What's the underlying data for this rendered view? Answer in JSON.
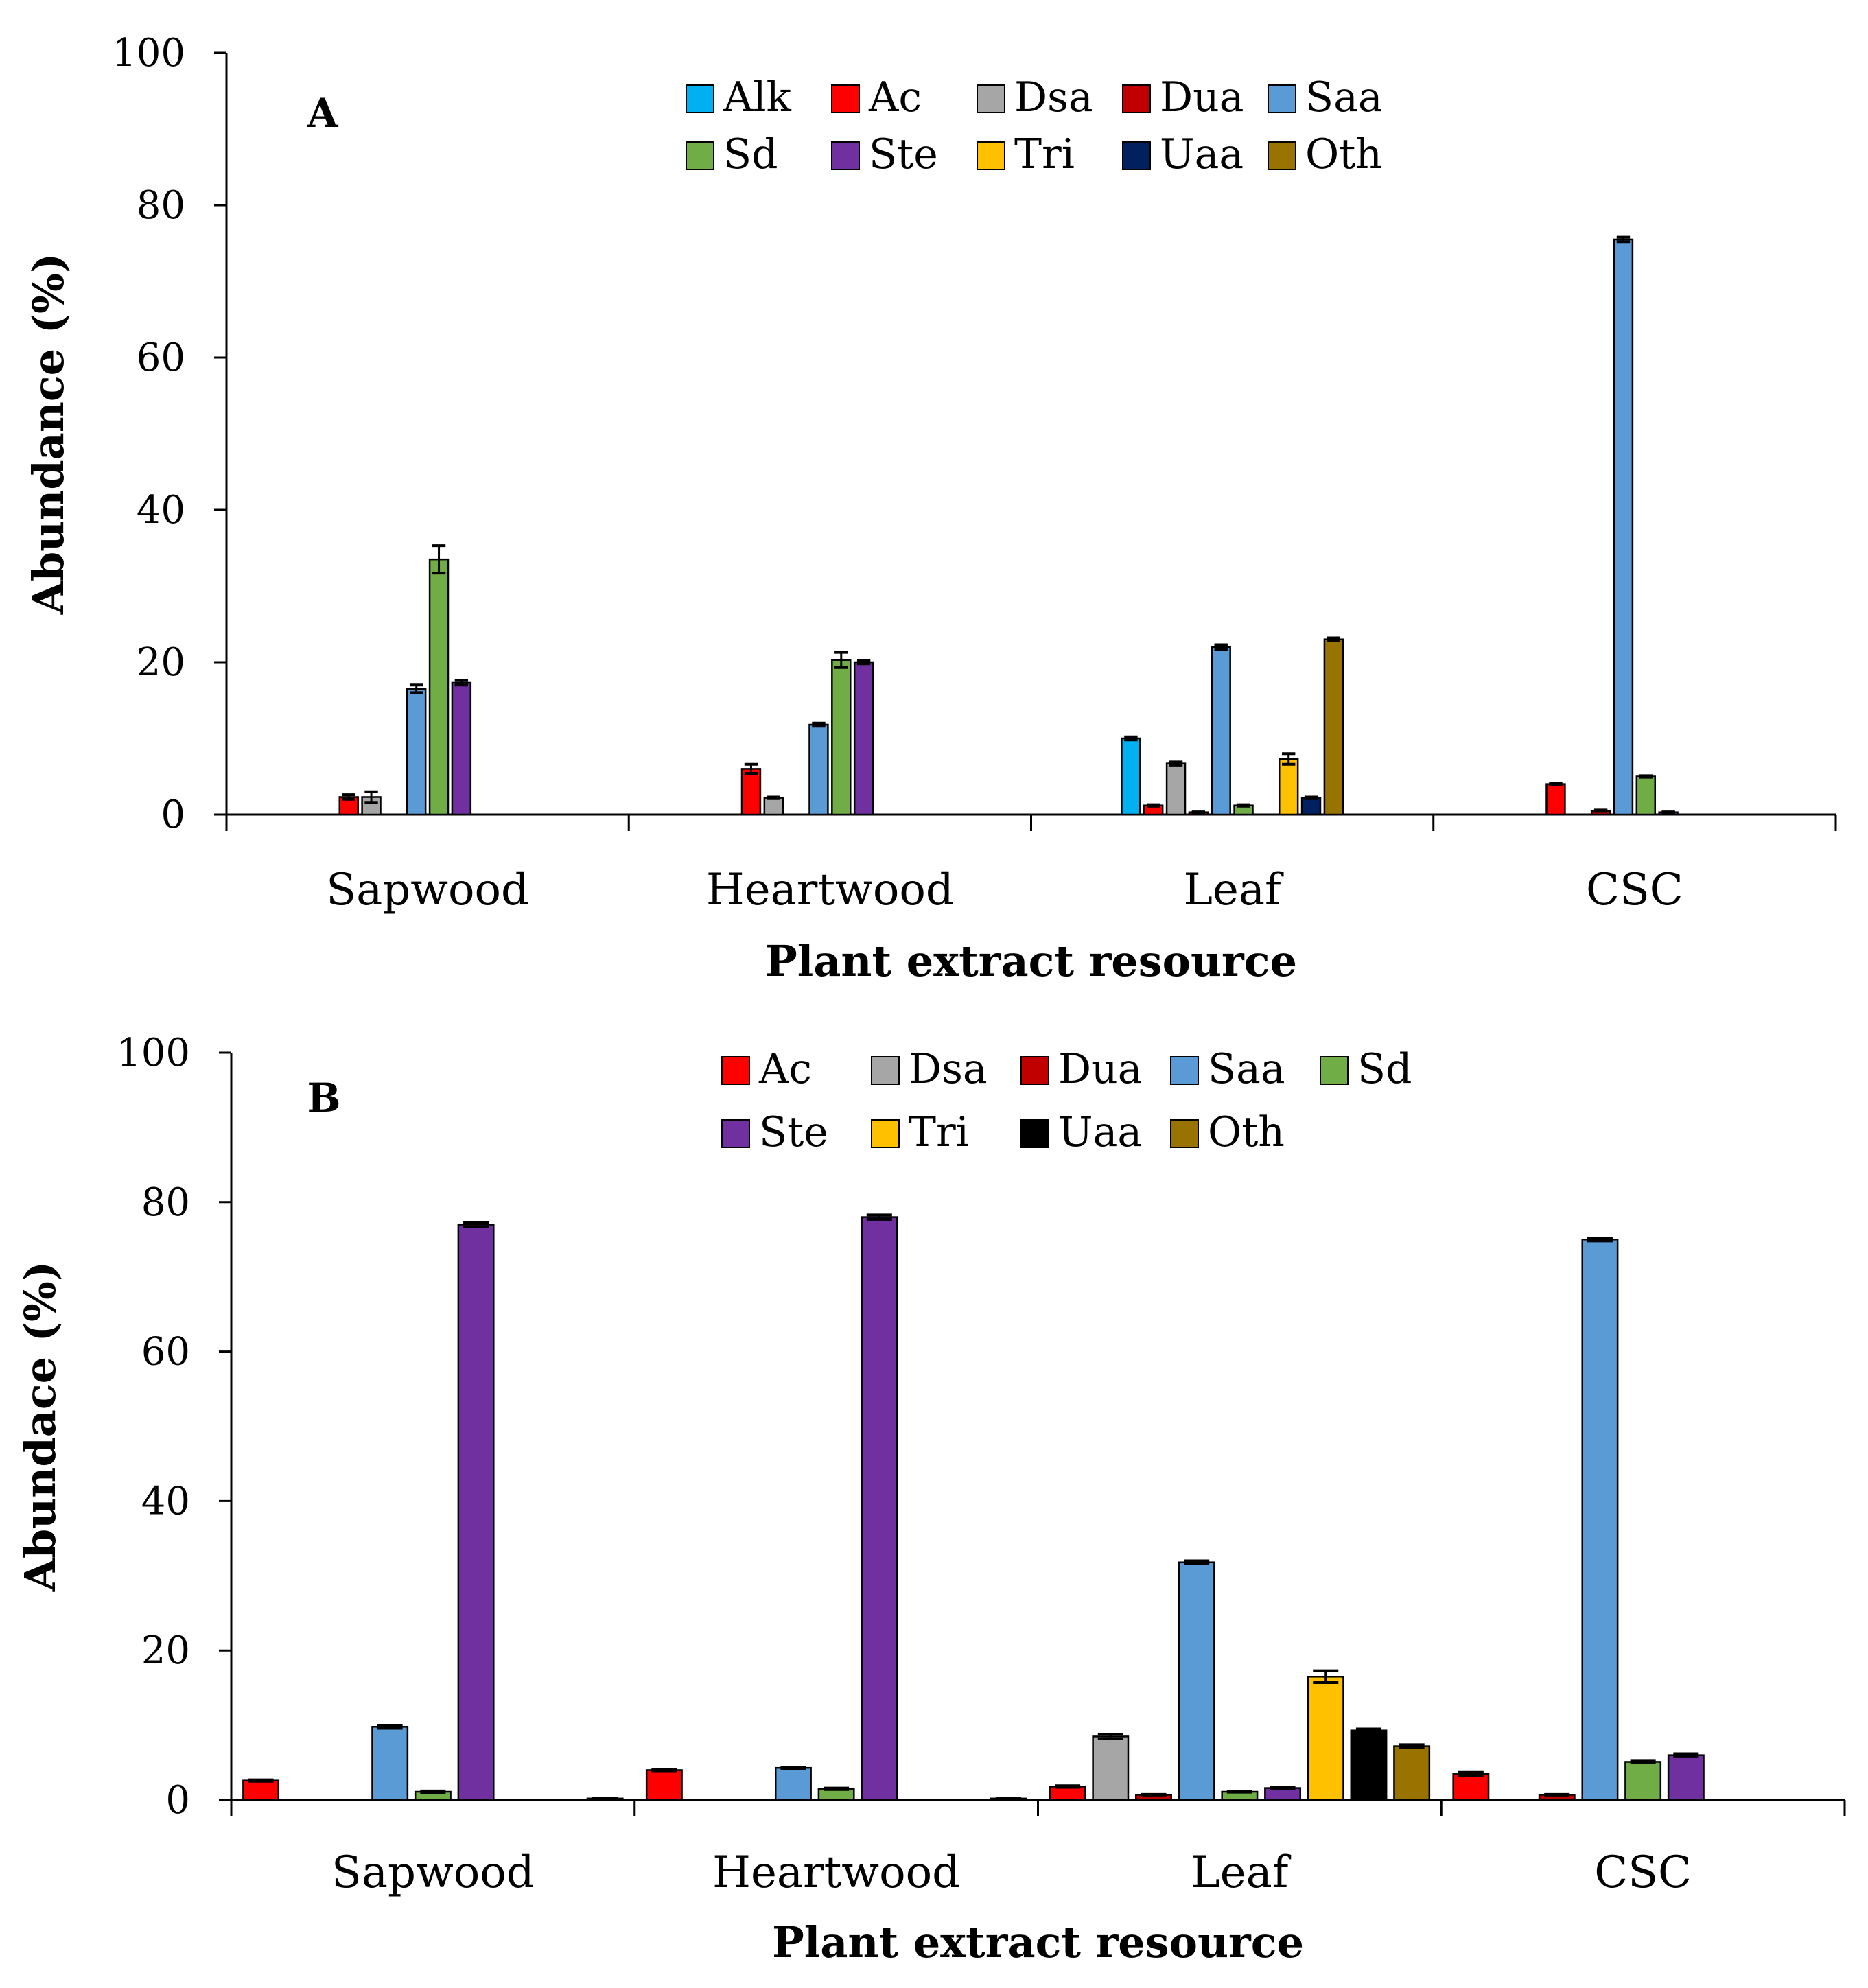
{
  "chart_data": [
    {
      "type": "bar",
      "panel_label": "A",
      "xlabel": "Plant extract resource",
      "ylabel": "Abundance (%)",
      "ylim": [
        0,
        100
      ],
      "yticks": [
        "0",
        "20",
        "40",
        "60",
        "80",
        "100"
      ],
      "grid": false,
      "legend_position": "top-center",
      "categories": [
        "Sapwood",
        "Heartwood",
        "Leaf",
        "CSC"
      ],
      "series": [
        {
          "name": "Alk",
          "color": "#00b0f0",
          "values": [
            null,
            null,
            10.0,
            null
          ],
          "errors": [
            0,
            0,
            0.2,
            0
          ]
        },
        {
          "name": "Ac",
          "color": "#ff0000",
          "values": [
            2.3,
            6.0,
            1.2,
            4.0
          ],
          "errors": [
            0.3,
            0.6,
            0.1,
            0.1
          ]
        },
        {
          "name": "Dsa",
          "color": "#a6a6a6",
          "values": [
            2.3,
            2.2,
            6.7,
            null
          ],
          "errors": [
            0.7,
            0.1,
            0.2,
            0
          ]
        },
        {
          "name": "Dua",
          "color": "#c00000",
          "values": [
            null,
            null,
            0.3,
            0.5
          ],
          "errors": [
            0,
            0,
            0.05,
            0.1
          ]
        },
        {
          "name": "Saa",
          "color": "#5b9bd5",
          "values": [
            16.5,
            11.8,
            22.0,
            75.5
          ],
          "errors": [
            0.5,
            0.2,
            0.3,
            0.3
          ]
        },
        {
          "name": "Sd",
          "color": "#70ad47",
          "values": [
            33.5,
            20.3,
            1.2,
            5.0
          ],
          "errors": [
            1.8,
            1.0,
            0.1,
            0.1
          ]
        },
        {
          "name": "Ste",
          "color": "#7030a0",
          "values": [
            17.3,
            20.0,
            null,
            0.3
          ],
          "errors": [
            0.3,
            0.2,
            0,
            0.05
          ]
        },
        {
          "name": "Tri",
          "color": "#ffc000",
          "values": [
            null,
            null,
            7.3,
            null
          ],
          "errors": [
            0,
            0,
            0.7,
            0
          ]
        },
        {
          "name": "Uaa",
          "color": "#002060",
          "values": [
            null,
            null,
            2.2,
            null
          ],
          "errors": [
            0,
            0,
            0.1,
            0
          ]
        },
        {
          "name": "Oth",
          "color": "#997300",
          "values": [
            null,
            null,
            23.0,
            null
          ],
          "errors": [
            0,
            0,
            0.2,
            0
          ]
        }
      ]
    },
    {
      "type": "bar",
      "panel_label": "B",
      "xlabel": "Plant extract resource",
      "ylabel": "Abundace (%)",
      "ylim": [
        0,
        100
      ],
      "yticks": [
        "0",
        "20",
        "40",
        "60",
        "80",
        "100"
      ],
      "grid": false,
      "legend_position": "top-center",
      "categories": [
        "Sapwood",
        "Heartwood",
        "Leaf",
        "CSC"
      ],
      "series": [
        {
          "name": "Ac",
          "color": "#ff0000",
          "values": [
            2.6,
            4.0,
            1.8,
            3.5
          ],
          "errors": [
            0.1,
            0.1,
            0.1,
            0.2
          ]
        },
        {
          "name": "Dsa",
          "color": "#a6a6a6",
          "values": [
            null,
            null,
            8.5,
            null
          ],
          "errors": [
            0,
            0,
            0.3,
            0
          ]
        },
        {
          "name": "Dua",
          "color": "#c00000",
          "values": [
            null,
            null,
            0.7,
            0.7
          ],
          "errors": [
            0,
            0,
            0.05,
            0.05
          ]
        },
        {
          "name": "Saa",
          "color": "#5b9bd5",
          "values": [
            9.8,
            4.3,
            31.8,
            75.0
          ],
          "errors": [
            0.2,
            0.1,
            0.2,
            0.2
          ]
        },
        {
          "name": "Sd",
          "color": "#70ad47",
          "values": [
            1.1,
            1.5,
            1.1,
            5.1
          ],
          "errors": [
            0.1,
            0.1,
            0.05,
            0.1
          ]
        },
        {
          "name": "Ste",
          "color": "#7030a0",
          "values": [
            77.0,
            78.0,
            1.6,
            6.0
          ],
          "errors": [
            0.3,
            0.3,
            0.1,
            0.2
          ]
        },
        {
          "name": "Tri",
          "color": "#ffc000",
          "values": [
            null,
            null,
            16.5,
            null
          ],
          "errors": [
            0,
            0,
            0.8,
            0
          ]
        },
        {
          "name": "Uaa",
          "color": "#000000",
          "values": [
            null,
            null,
            9.3,
            null
          ],
          "errors": [
            0,
            0,
            0.2,
            0
          ]
        },
        {
          "name": "Oth",
          "color": "#997300",
          "values": [
            0.2,
            0.2,
            7.2,
            null
          ],
          "errors": [
            0,
            0,
            0.2,
            0
          ]
        }
      ]
    }
  ]
}
